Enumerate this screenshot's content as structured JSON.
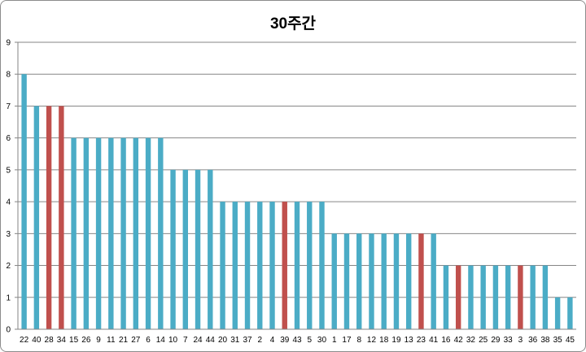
{
  "chart_data": {
    "type": "bar",
    "title": "30주간",
    "xlabel": "",
    "ylabel": "",
    "ylim": [
      0,
      9
    ],
    "yticks": [
      0,
      1,
      2,
      3,
      4,
      5,
      6,
      7,
      8,
      9
    ],
    "grid": true,
    "legend": "none",
    "colors": {
      "normal": "#4bacc6",
      "highlight": "#c0504d"
    },
    "categories": [
      "22",
      "40",
      "28",
      "34",
      "15",
      "26",
      "9",
      "11",
      "21",
      "27",
      "6",
      "14",
      "10",
      "7",
      "24",
      "44",
      "20",
      "31",
      "37",
      "2",
      "4",
      "39",
      "43",
      "5",
      "30",
      "1",
      "17",
      "8",
      "12",
      "18",
      "19",
      "13",
      "23",
      "41",
      "16",
      "42",
      "32",
      "25",
      "29",
      "33",
      "3",
      "36",
      "38",
      "35",
      "45"
    ],
    "values": [
      8,
      7,
      7,
      7,
      6,
      6,
      6,
      6,
      6,
      6,
      6,
      6,
      5,
      5,
      5,
      5,
      4,
      4,
      4,
      4,
      4,
      4,
      4,
      4,
      4,
      3,
      3,
      3,
      3,
      3,
      3,
      3,
      3,
      3,
      2,
      2,
      2,
      2,
      2,
      2,
      2,
      2,
      2,
      1,
      1
    ],
    "highlighted": [
      "28",
      "34",
      "39",
      "23",
      "42",
      "3"
    ]
  }
}
